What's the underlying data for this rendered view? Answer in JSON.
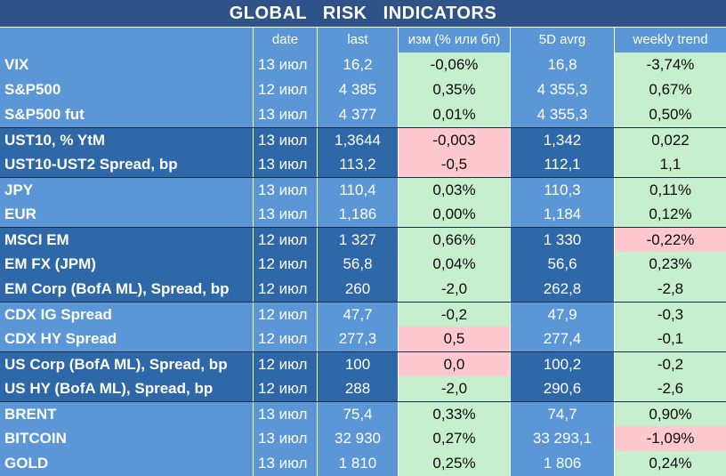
{
  "title": "GLOBAL   RISK   INDICATORS",
  "columns": {
    "name": "",
    "date": "date",
    "last": "last",
    "change": "изм (% или бп)",
    "avg5d": "5D avrg",
    "trend": "weekly trend"
  },
  "colors": {
    "title_bg": "#2f5388",
    "row_light": "#5b97d6",
    "row_dark": "#2e68a8",
    "positive_bg": "#c6efce",
    "negative_bg": "#ffc7ce"
  },
  "rows": [
    {
      "name": "VIX",
      "date": "13 июл",
      "last": "16,2",
      "change": "-0,06%",
      "avg5d": "16,8",
      "trend": "-3,74%",
      "group": "light",
      "change_tone": "pos",
      "trend_tone": "pos"
    },
    {
      "name": "S&P500",
      "date": "12 июл",
      "last": "4 385",
      "change": "0,35%",
      "avg5d": "4 355,3",
      "trend": "0,67%",
      "group": "light",
      "change_tone": "pos",
      "trend_tone": "pos"
    },
    {
      "name": "S&P500 fut",
      "date": "13 июл",
      "last": "4 377",
      "change": "0,01%",
      "avg5d": "4 355,3",
      "trend": "0,50%",
      "group": "light",
      "change_tone": "pos",
      "trend_tone": "pos"
    },
    {
      "name": "UST10, % YtM",
      "date": "13 июл",
      "last": "1,3644",
      "change": "-0,003",
      "avg5d": "1,342",
      "trend": "0,022",
      "group": "dark",
      "change_tone": "neg",
      "trend_tone": "pos"
    },
    {
      "name": "UST10-UST2 Spread, bp",
      "date": "13 июл",
      "last": "113,2",
      "change": "-0,5",
      "avg5d": "112,1",
      "trend": "1,1",
      "group": "dark",
      "change_tone": "neg",
      "trend_tone": "pos"
    },
    {
      "name": "JPY",
      "date": "13 июл",
      "last": "110,4",
      "change": "0,03%",
      "avg5d": "110,3",
      "trend": "0,11%",
      "group": "light",
      "change_tone": "pos",
      "trend_tone": "pos"
    },
    {
      "name": "EUR",
      "date": "13 июл",
      "last": "1,186",
      "change": "0,00%",
      "avg5d": "1,184",
      "trend": "0,12%",
      "group": "light",
      "change_tone": "pos",
      "trend_tone": "pos"
    },
    {
      "name": "MSCI EM",
      "date": "12 июл",
      "last": "1 327",
      "change": "0,66%",
      "avg5d": "1 330",
      "trend": "-0,22%",
      "group": "dark",
      "change_tone": "pos",
      "trend_tone": "neg"
    },
    {
      "name": "EM FX (JPM)",
      "date": "12 июл",
      "last": "56,8",
      "change": "0,04%",
      "avg5d": "56,6",
      "trend": "0,23%",
      "group": "dark",
      "change_tone": "pos",
      "trend_tone": "pos"
    },
    {
      "name": "EM Corp (BofA ML), Spread, bp",
      "date": "12 июл",
      "last": "260",
      "change": "-2,0",
      "avg5d": "262,8",
      "trend": "-2,8",
      "group": "dark",
      "change_tone": "pos",
      "trend_tone": "pos"
    },
    {
      "name": "CDX IG Spread",
      "date": "12 июл",
      "last": "47,7",
      "change": "-0,2",
      "avg5d": "47,9",
      "trend": "-0,3",
      "group": "light",
      "change_tone": "pos",
      "trend_tone": "pos"
    },
    {
      "name": "CDX HY Spread",
      "date": "12 июл",
      "last": "277,3",
      "change": "0,5",
      "avg5d": "277,4",
      "trend": "-0,1",
      "group": "light",
      "change_tone": "neg",
      "trend_tone": "pos"
    },
    {
      "name": "US Corp (BofA ML), Spread, bp",
      "date": "12 июл",
      "last": "100",
      "change": "0,0",
      "avg5d": "100,2",
      "trend": "-0,2",
      "group": "dark",
      "change_tone": "neg",
      "trend_tone": "pos"
    },
    {
      "name": "US HY (BofA ML), Spread, bp",
      "date": "12 июл",
      "last": "288",
      "change": "-2,0",
      "avg5d": "290,6",
      "trend": "-2,6",
      "group": "dark",
      "change_tone": "pos",
      "trend_tone": "pos"
    },
    {
      "name": "BRENT",
      "date": "13 июл",
      "last": "75,4",
      "change": "0,33%",
      "avg5d": "74,7",
      "trend": "0,90%",
      "group": "light",
      "change_tone": "pos",
      "trend_tone": "pos"
    },
    {
      "name": "BITCOIN",
      "date": "13 июл",
      "last": "32 930",
      "change": "0,27%",
      "avg5d": "33 293,1",
      "trend": "-1,09%",
      "group": "light",
      "change_tone": "pos",
      "trend_tone": "neg"
    },
    {
      "name": "GOLD",
      "date": "13 июл",
      "last": "1 810",
      "change": "0,25%",
      "avg5d": "1 806",
      "trend": "0,24%",
      "group": "light",
      "change_tone": "pos",
      "trend_tone": "pos"
    }
  ]
}
